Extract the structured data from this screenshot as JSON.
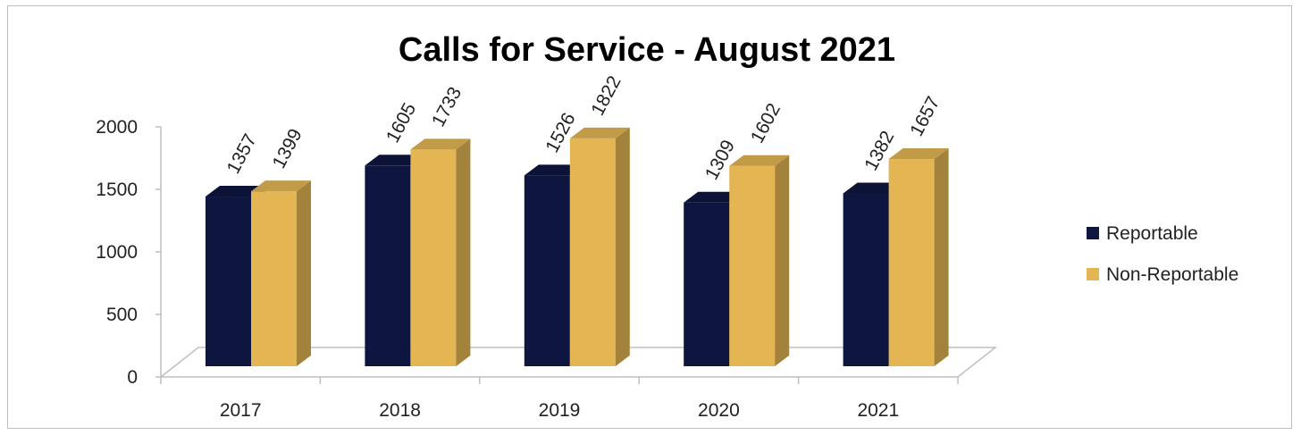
{
  "chart_data": {
    "type": "bar",
    "title": "Calls for Service - August 2021",
    "categories": [
      "2017",
      "2018",
      "2019",
      "2020",
      "2021"
    ],
    "series": [
      {
        "name": "Reportable",
        "values": [
          1357,
          1605,
          1526,
          1309,
          1382
        ],
        "color": "#0e1640"
      },
      {
        "name": "Non-Reportable",
        "values": [
          1399,
          1733,
          1822,
          1602,
          1657
        ],
        "color": "#e3b653"
      }
    ],
    "ylim": [
      0,
      2000
    ],
    "yticks": [
      "0",
      "500",
      "1000",
      "1500",
      "2000"
    ],
    "xlabel": "",
    "ylabel": "",
    "legend_position": "right",
    "three_d": true
  }
}
